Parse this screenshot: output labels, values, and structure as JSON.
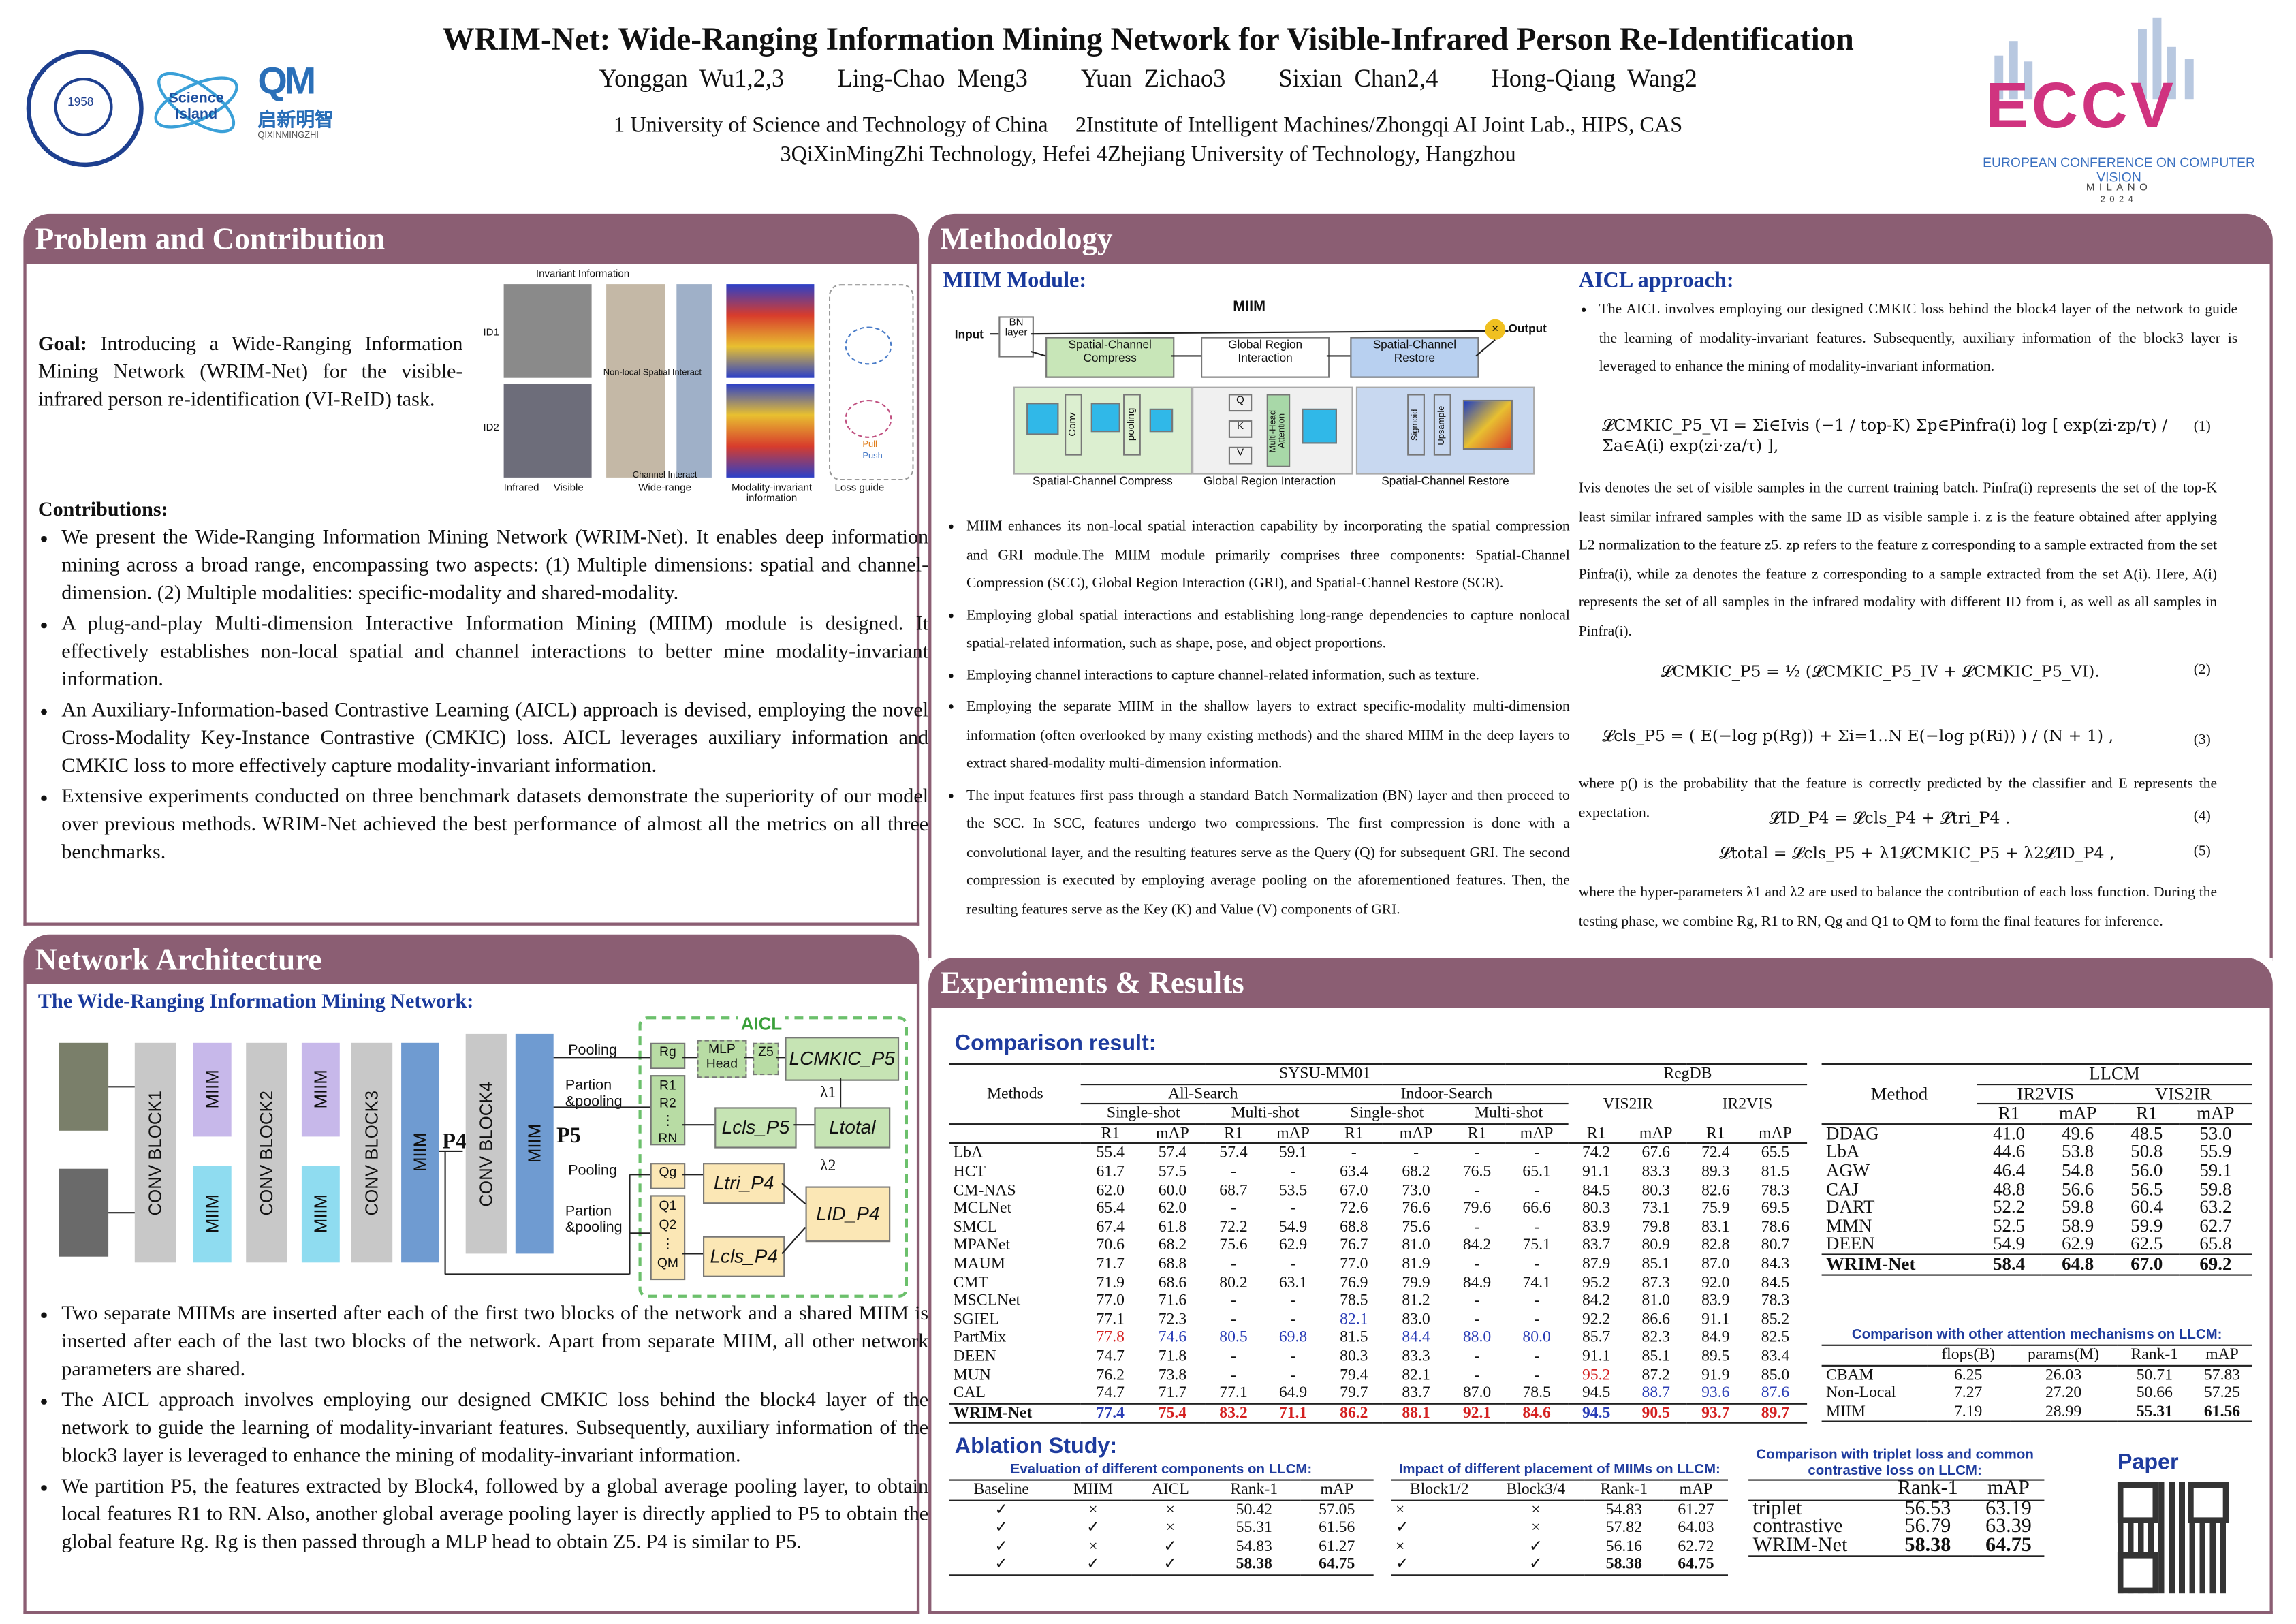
{
  "header": {
    "title": "WRIM-Net: Wide-Ranging Information Mining Network for Visible-Infrared Person Re-Identification",
    "authors": [
      "Yonggan Wu1,2,3",
      "Ling-Chao Meng3",
      "Yuan Zichao3",
      "Sixian Chan2,4",
      "Hong-Qiang Wang2"
    ],
    "affiliations_line1": "1 University of Science and Technology of China     2Institute of Intelligent Machines/Zhongqi AI Joint Lab., HIPS, CAS",
    "affiliations_line2": "3QiXinMingZhi Technology, Hefei 4Zhejiang University of Technology, Hangzhou",
    "logo_science_island": "Science Island",
    "logo_qxmz_cn": "启新明智",
    "logo_qxmz_en": "QIXINMINGZHI",
    "eccv_big": "ECCV",
    "eccv_conf": "EUROPEAN CONFERENCE ON COMPUTER VISION",
    "eccv_city": "MILANO",
    "eccv_year": "2024",
    "colors": {
      "accent": "#8b5e73",
      "heading_blue": "#1f3c9e"
    }
  },
  "problem": {
    "heading": "Problem and Contribution",
    "goal_label": "Goal:",
    "goal_text": "Introducing a Wide-Ranging Information Mining Network (WRIM-Net) for the visible-infrared person re-identification (VI-ReID) task.",
    "figure_labels": {
      "invariant": "Invariant Information",
      "nonlocal": "Non-local Spatial Interact",
      "channel": "Channel Interact",
      "widerange": "Wide-range",
      "modality": "Modality-invariant information",
      "lossguide": "Loss guide",
      "infrared": "Infrared",
      "visible": "Visible",
      "id1": "ID1",
      "id2": "ID2",
      "pull": "Pull",
      "push": "Push"
    },
    "contrib_label": "Contributions:",
    "contributions": [
      "We present the Wide-Ranging Information Mining Network (WRIM-Net). It enables deep information mining across a broad range, encompassing two aspects: (1) Multiple dimensions: spatial and channel-dimension. (2) Multiple modalities: specific-modality and shared-modality.",
      "A plug-and-play Multi-dimension Interactive Information Mining (MIIM) module is designed. It effectively establishes non-local spatial and channel interactions to better mine modality-invariant information.",
      "An Auxiliary-Information-based Contrastive Learning (AICL) approach is devised, employing the novel Cross-Modality Key-Instance Contrastive (CMKIC) loss. AICL leverages auxiliary information and CMKIC loss to more effectively capture modality-invariant information.",
      "Extensive experiments conducted on three benchmark datasets demonstrate the superiority of our model over previous methods. WRIM-Net achieved the best performance of almost all the metrics on all three benchmarks."
    ]
  },
  "network": {
    "heading": "Network Architecture",
    "subtitle": "The Wide-Ranging Information Mining Network:",
    "blocks": {
      "conv1": "CONV BLOCK1",
      "conv2": "CONV BLOCK2",
      "conv3": "CONV BLOCK3",
      "conv4": "CONV BLOCK4",
      "miim": "MIIM",
      "p4": "P4",
      "p5": "P5"
    },
    "aicl": "AICL",
    "labels": {
      "pooling": "Pooling",
      "partion": "Partion &pooling",
      "rg": "Rg",
      "r1": "R1",
      "r2": "R2",
      "rn": "RN",
      "mlp": "MLP Head",
      "z5": "Z5",
      "qg": "Qg",
      "q1": "Q1",
      "q2": "Q2",
      "qm": "QM",
      "lcmkic": "LCMKIC_P5",
      "lcls5": "Lcls_P5",
      "ltotal": "Ltotal",
      "ltri": "Ltri_P4",
      "lid": "LID_P4",
      "lcls4": "Lcls_P4",
      "l1": "λ1",
      "l2": "λ2"
    },
    "bullets": [
      "Two separate MIIMs are inserted after each of the first two blocks of the network and a shared MIIM is inserted after each of the last two blocks of the network. Apart from separate MIIM, all other network parameters are shared.",
      "The AICL approach involves employing our designed CMKIC loss behind the block4 layer of the network to guide the learning of modality-invariant features. Subsequently, auxiliary information of the block3 layer is leveraged to enhance the mining of modality-invariant information.",
      "We partition P5, the features extracted by Block4, followed by a global average pooling layer, to obtain local features R1 to RN. Also, another global average pooling layer is directly applied to P5 to obtain the global feature Rg. Rg is then passed through a MLP head to obtain Z5. P4 is similar to P5."
    ]
  },
  "method": {
    "heading": "Methodology",
    "miim_title": "MIIM Module:",
    "miim_fig": {
      "title": "MIIM",
      "input": "Input",
      "output": "Output",
      "bn": "BN layer",
      "scc": "Spatial-Channel Compress",
      "gri": "Global Region Interaction",
      "scr": "Spatial-Channel Restore",
      "conv": "Conv",
      "pooling": "pooling",
      "mha": "Multi-Head Attention",
      "sigmoid": "Sigmoid",
      "upsample": "Upsample",
      "q": "Q",
      "k": "K",
      "v": "V"
    },
    "miim_bullets": [
      "MIIM enhances its non-local spatial interaction capability by incorporating the spatial compression and GRI module.The MIIM module primarily comprises three components: Spatial-Channel Compression (SCC), Global Region Interaction (GRI), and Spatial-Channel Restore (SCR).",
      "Employing global spatial interactions and establishing long-range dependencies to capture nonlocal spatial-related information, such as shape, pose, and object proportions.",
      "Employing channel interactions to capture channel-related information, such as texture.",
      "Employing the separate MIIM in the shallow layers to extract specific-modality multi-dimension information (often overlooked by many existing methods) and the shared MIIM in the deep layers to extract shared-modality multi-dimension information.",
      "The input features first pass through a standard Batch Normalization (BN) layer and then proceed to the SCC. In SCC, features undergo two compressions. The first compression is done with a convolutional layer, and the resulting features serve as the Query (Q) for subsequent GRI. The second compression is executed by employing average pooling on the aforementioned features. Then, the resulting features serve as the Key (K) and Value (V) components of GRI."
    ],
    "aicl_title": "AICL approach:",
    "aicl_intro": "The AICL involves employing our designed CMKIC loss behind the block4 layer of the network to guide the learning of modality-invariant features. Subsequently, auxiliary information of the block3 layer is leveraged to enhance the mining of modality-invariant information.",
    "eq1": "𝓛CMKIC_P5_VI = Σi∈Ivis (−1 / top-K) Σp∈Pinfra(i) log [ exp(zi·zp/τ) / Σa∈A(i) exp(zi·za/τ) ],",
    "eq1_no": "(1)",
    "aicl_text1": "Ivis denotes the set of visible samples in the current training batch. Pinfra(i) represents the set of the top-K least similar infrared samples with the same ID as visible sample i. z is the feature obtained after applying L2 normalization to the feature z5. zp refers to the feature z corresponding to a sample extracted from the set Pinfra(i), while za denotes the feature z corresponding to a sample extracted from the set A(i). Here, A(i) represents the set of all samples in the infrared modality with different ID from i, as well as all samples in Pinfra(i).",
    "eq2": "𝓛CMKIC_P5 = ½ (𝓛CMKIC_P5_IV + 𝓛CMKIC_P5_VI).",
    "eq2_no": "(2)",
    "eq3": "𝓛cls_P5 = ( E(−log p(Rg)) + Σi=1..N E(−log p(Ri)) ) / (N + 1) ,",
    "eq3_no": "(3)",
    "aicl_text2": "where p() is the probability that the feature is correctly predicted by the classifier and E represents the expectation.",
    "eq4": "𝓛ID_P4 = 𝓛cls_P4 + 𝓛tri_P4 .",
    "eq4_no": "(4)",
    "eq5": "𝓛total = 𝓛cls_P5 + λ1𝓛CMKIC_P5 + λ2𝓛ID_P4 ,",
    "eq5_no": "(5)",
    "aicl_text3": "where the hyper-parameters λ1 and λ2 are used to balance the contribution of each loss function. During the testing phase, we combine Rg, R1 to RN, Qg and Q1 to QM to form the final features for inference."
  },
  "results": {
    "heading": "Experiments & Results",
    "comparison_title": "Comparison result:",
    "main_table": {
      "groups": {
        "sysu": "SYSU-MM01",
        "regdb": "RegDB",
        "all": "All-Search",
        "indoor": "Indoor-Search",
        "single": "Single-shot",
        "multi": "Multi-shot",
        "v2i": "VIS2IR",
        "i2v": "IR2VIS",
        "methods": "Methods",
        "r1": "R1",
        "map": "mAP"
      },
      "rows": [
        {
          "m": "LbA",
          "v": [
            "55.4",
            "57.4",
            "57.4",
            "59.1",
            "-",
            "-",
            "-",
            "-",
            "74.2",
            "67.6",
            "72.4",
            "65.5"
          ]
        },
        {
          "m": "HCT",
          "v": [
            "61.7",
            "57.5",
            "-",
            "-",
            "63.4",
            "68.2",
            "76.5",
            "65.1",
            "91.1",
            "83.3",
            "89.3",
            "81.5"
          ]
        },
        {
          "m": "CM-NAS",
          "v": [
            "62.0",
            "60.0",
            "68.7",
            "53.5",
            "67.0",
            "73.0",
            "-",
            "-",
            "84.5",
            "80.3",
            "82.6",
            "78.3"
          ]
        },
        {
          "m": "MCLNet",
          "v": [
            "65.4",
            "62.0",
            "-",
            "-",
            "72.6",
            "76.6",
            "79.6",
            "66.6",
            "80.3",
            "73.1",
            "75.9",
            "69.5"
          ]
        },
        {
          "m": "SMCL",
          "v": [
            "67.4",
            "61.8",
            "72.2",
            "54.9",
            "68.8",
            "75.6",
            "-",
            "-",
            "83.9",
            "79.8",
            "83.1",
            "78.6"
          ]
        },
        {
          "m": "MPANet",
          "v": [
            "70.6",
            "68.2",
            "75.6",
            "62.9",
            "76.7",
            "81.0",
            "84.2",
            "75.1",
            "83.7",
            "80.9",
            "82.8",
            "80.7"
          ]
        },
        {
          "m": "MAUM",
          "v": [
            "71.7",
            "68.8",
            "-",
            "-",
            "77.0",
            "81.9",
            "-",
            "-",
            "87.9",
            "85.1",
            "87.0",
            "84.3"
          ]
        },
        {
          "m": "CMT",
          "v": [
            "71.9",
            "68.6",
            "80.2",
            "63.1",
            "76.9",
            "79.9",
            "84.9",
            "74.1",
            "95.2",
            "87.3",
            "92.0",
            "84.5"
          ]
        },
        {
          "m": "MSCLNet",
          "v": [
            "77.0",
            "71.6",
            "-",
            "-",
            "78.5",
            "81.2",
            "-",
            "-",
            "84.2",
            "81.0",
            "83.9",
            "78.3"
          ]
        },
        {
          "m": "SGIEL",
          "v": [
            "77.1",
            "72.3",
            "-",
            "-",
            "82.1",
            "83.0",
            "-",
            "-",
            "92.2",
            "86.6",
            "91.1",
            "85.2"
          ]
        },
        {
          "m": "PartMix",
          "v": [
            "77.8",
            "74.6",
            "80.5",
            "69.8",
            "81.5",
            "84.4",
            "88.0",
            "80.0",
            "85.7",
            "82.3",
            "84.9",
            "82.5"
          ]
        },
        {
          "m": "DEEN",
          "v": [
            "74.7",
            "71.8",
            "-",
            "-",
            "80.3",
            "83.3",
            "-",
            "-",
            "91.1",
            "85.1",
            "89.5",
            "83.4"
          ]
        },
        {
          "m": "MUN",
          "v": [
            "76.2",
            "73.8",
            "-",
            "-",
            "79.4",
            "82.1",
            "-",
            "-",
            "95.2",
            "87.2",
            "91.9",
            "85.0"
          ]
        },
        {
          "m": "CAL",
          "v": [
            "74.7",
            "71.7",
            "77.1",
            "64.9",
            "79.7",
            "83.7",
            "87.0",
            "78.5",
            "94.5",
            "88.7",
            "93.6",
            "87.6"
          ]
        },
        {
          "m": "WRIM-Net",
          "v": [
            "77.4",
            "75.4",
            "83.2",
            "71.1",
            "86.2",
            "88.1",
            "92.1",
            "84.6",
            "94.5",
            "90.5",
            "93.7",
            "89.7"
          ]
        }
      ]
    },
    "llcm_table": {
      "title": "LLCM",
      "method": "Method",
      "i2v": "IR2VIS",
      "v2i": "VIS2IR",
      "r1": "R1",
      "map": "mAP",
      "rows": [
        {
          "m": "DDAG",
          "v": [
            "41.0",
            "49.6",
            "48.5",
            "53.0"
          ]
        },
        {
          "m": "LbA",
          "v": [
            "44.6",
            "53.8",
            "50.8",
            "55.9"
          ]
        },
        {
          "m": "AGW",
          "v": [
            "46.4",
            "54.8",
            "56.0",
            "59.1"
          ]
        },
        {
          "m": "CAJ",
          "v": [
            "48.8",
            "56.6",
            "56.5",
            "59.8"
          ]
        },
        {
          "m": "DART",
          "v": [
            "52.2",
            "59.8",
            "60.4",
            "63.2"
          ]
        },
        {
          "m": "MMN",
          "v": [
            "52.5",
            "58.9",
            "59.9",
            "62.7"
          ]
        },
        {
          "m": "DEEN",
          "v": [
            "54.9",
            "62.9",
            "62.5",
            "65.8"
          ]
        },
        {
          "m": "WRIM-Net",
          "v": [
            "58.4",
            "64.8",
            "67.0",
            "69.2"
          ]
        }
      ]
    },
    "attn_table": {
      "caption": "Comparison with other attention mechanisms on LLCM:",
      "headers": [
        "",
        "flops(B)",
        "params(M)",
        "Rank-1",
        "mAP"
      ],
      "rows": [
        [
          "CBAM",
          "6.25",
          "26.03",
          "50.71",
          "57.83"
        ],
        [
          "Non-Local",
          "7.27",
          "27.20",
          "50.66",
          "57.25"
        ],
        [
          "MIIM",
          "7.19",
          "28.99",
          "55.31",
          "61.56"
        ]
      ]
    },
    "ablation_title": "Ablation Study:",
    "abl1": {
      "caption": "Evaluation of different components on LLCM:",
      "headers": [
        "Baseline",
        "MIIM",
        "AICL",
        "Rank-1",
        "mAP"
      ],
      "rows": [
        [
          "✓",
          "×",
          "×",
          "50.42",
          "57.05"
        ],
        [
          "✓",
          "✓",
          "×",
          "55.31",
          "61.56"
        ],
        [
          "✓",
          "×",
          "✓",
          "54.83",
          "61.27"
        ],
        [
          "✓",
          "✓",
          "✓",
          "58.38",
          "64.75"
        ]
      ]
    },
    "abl2": {
      "caption": "Impact of different placement of MIIMs on LLCM:",
      "headers": [
        "Block1/2",
        "Block3/4",
        "Rank-1",
        "mAP"
      ],
      "rows": [
        [
          "×",
          "×",
          "54.83",
          "61.27"
        ],
        [
          "✓",
          "×",
          "57.82",
          "64.03"
        ],
        [
          "×",
          "✓",
          "56.16",
          "62.72"
        ],
        [
          "✓",
          "✓",
          "58.38",
          "64.75"
        ]
      ]
    },
    "abl3": {
      "caption": "Comparison with triplet loss and common contrastive loss on LLCM:",
      "headers": [
        "",
        "Rank-1",
        "mAP"
      ],
      "rows": [
        [
          "triplet",
          "56.53",
          "63.19"
        ],
        [
          "contrastive",
          "56.79",
          "63.39"
        ],
        [
          "WRIM-Net",
          "58.38",
          "64.75"
        ]
      ]
    },
    "paper_label": "Paper"
  }
}
